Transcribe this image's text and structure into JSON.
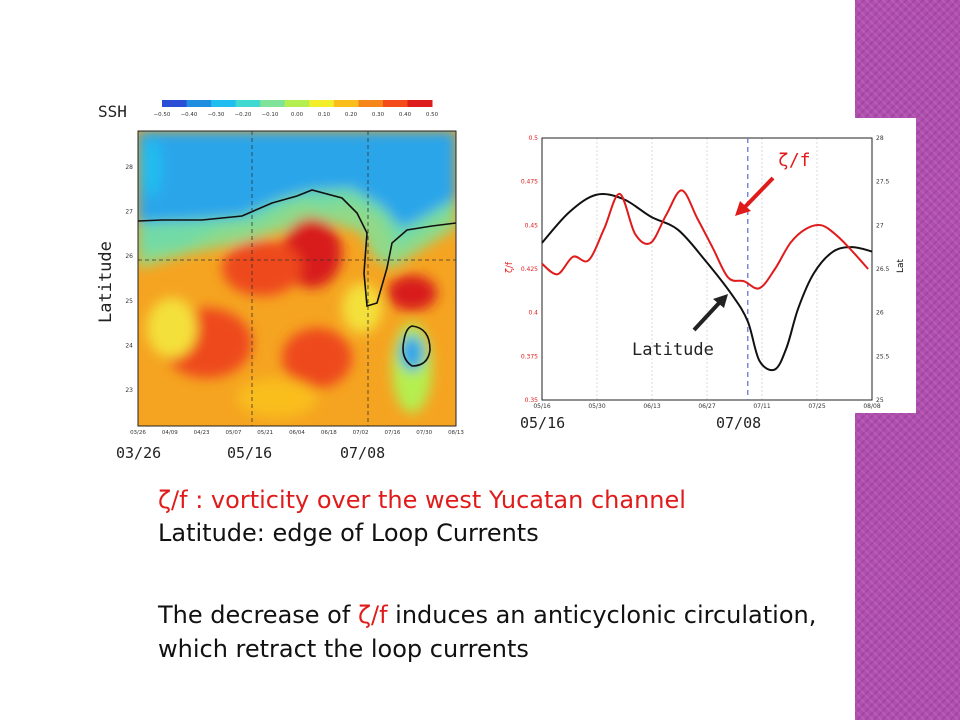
{
  "slide": {
    "band_color": "#b14fb0",
    "text": {
      "line1": "ζ/f : vorticity over the west Yucatan channel",
      "line2": "Latitude: edge of Loop Currents",
      "line3_a": "The decrease of ",
      "line3_b": "ζ/f",
      "line3_c": " induces an anticyclonic circulation,",
      "line4": "which retract the loop currents"
    }
  },
  "chart_data": [
    {
      "type": "heatmap",
      "title": "SSH",
      "ylabel": "Latitude",
      "colorbar": {
        "ticks": [
          "−0.50",
          "−0.40",
          "−0.30",
          "−0.20",
          "−0.10",
          "0.00",
          "0.10",
          "0.20",
          "0.30",
          "0.40",
          "0.50"
        ],
        "colors": [
          "#2a4fd6",
          "#1f8de0",
          "#20bdf0",
          "#3fd9d0",
          "#7fe39a",
          "#b5ee4f",
          "#f2ef2a",
          "#f9bd1c",
          "#f7861a",
          "#f44b1a",
          "#dd1c1c"
        ]
      },
      "x_ticks": [
        "03/26",
        "04/09",
        "04/23",
        "05/07",
        "05/21",
        "06/04",
        "06/18",
        "07/02",
        "07/16",
        "07/30",
        "08/13"
      ],
      "x_labels_large": [
        "03/26",
        "05/16",
        "07/08"
      ],
      "y_ticks": [
        23,
        24,
        25,
        26,
        27,
        28
      ],
      "ylim": [
        22.2,
        28.8
      ],
      "colors": {
        "low": "#2ba5ea",
        "mid": "#f5a421",
        "high": "#ee4a1c",
        "peak": "#d81f1f",
        "yellow": "#f4e03a"
      }
    },
    {
      "type": "line",
      "x_ticks": [
        "05/16",
        "05/30",
        "06/13",
        "06/27",
        "07/11",
        "07/25",
        "08/08"
      ],
      "x_labels_large": [
        "05/16",
        "07/08"
      ],
      "y_left": {
        "label": "ζ/f",
        "ticks": [
          0.35,
          0.375,
          0.4,
          0.425,
          0.45,
          0.475,
          0.5
        ],
        "range": [
          0.35,
          0.5
        ]
      },
      "y_right": {
        "label": "Lat",
        "ticks": [
          25,
          25.5,
          26,
          26.5,
          27,
          27.5,
          28
        ],
        "range": [
          25,
          28
        ]
      },
      "vline_day": 53,
      "series": [
        {
          "name": "Latitude",
          "axis": "right",
          "color": "#111111",
          "x": [
            0,
            7,
            14,
            21,
            28,
            35,
            42,
            49,
            53,
            56,
            60,
            63,
            66,
            70,
            75,
            80,
            85
          ],
          "y": [
            26.8,
            27.15,
            27.35,
            27.3,
            27.1,
            26.95,
            26.6,
            26.2,
            25.9,
            25.45,
            25.35,
            25.6,
            26.05,
            26.45,
            26.7,
            26.75,
            26.7
          ]
        },
        {
          "name": "ζ/f",
          "axis": "left",
          "color": "#e01b1b",
          "x": [
            0,
            4,
            8,
            12,
            16,
            20,
            24,
            28,
            32,
            36,
            40,
            44,
            48,
            52,
            56,
            60,
            64,
            68,
            72,
            76,
            80,
            84
          ],
          "y": [
            0.428,
            0.422,
            0.432,
            0.43,
            0.448,
            0.468,
            0.445,
            0.44,
            0.456,
            0.47,
            0.454,
            0.437,
            0.42,
            0.418,
            0.414,
            0.425,
            0.44,
            0.448,
            0.45,
            0.444,
            0.435,
            0.425
          ]
        }
      ],
      "annotations": {
        "zeta_label": "ζ/f",
        "lat_label": "Latitude"
      }
    }
  ]
}
